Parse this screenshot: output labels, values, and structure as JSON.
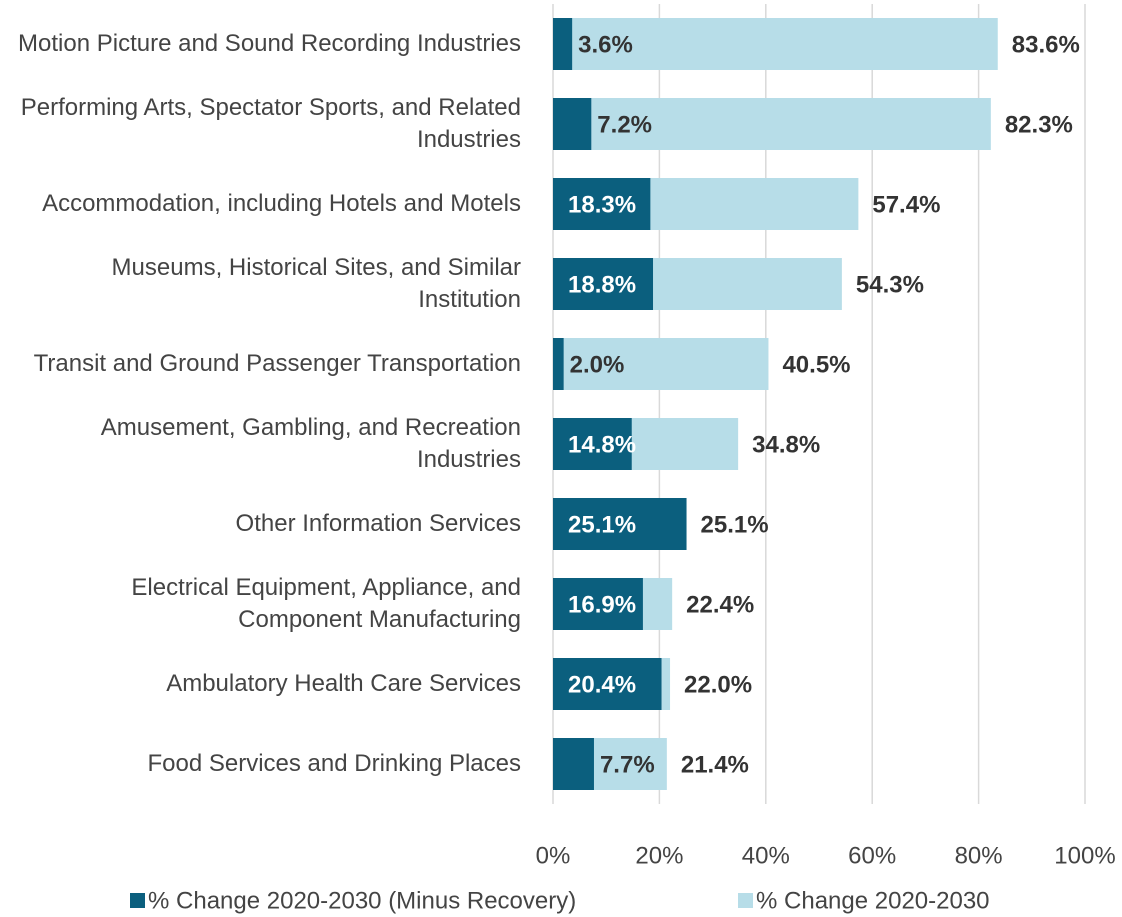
{
  "chart_data": {
    "type": "bar",
    "orientation": "horizontal",
    "categories": [
      "Motion Picture and Sound Recording Industries",
      "Performing Arts, Spectator Sports, and Related Industries",
      "Accommodation, including Hotels and Motels",
      "Museums, Historical Sites, and Similar Institution",
      "Transit and Ground Passenger Transportation",
      "Amusement, Gambling, and Recreation Industries",
      "Other Information Services",
      "Electrical Equipment, Appliance, and Component Manufacturing",
      "Ambulatory Health Care Services",
      "Food Services and Drinking Places"
    ],
    "series": [
      {
        "name": "% Change 2020-2030 (Minus Recovery)",
        "color": "#0b5f7e",
        "values": [
          3.6,
          7.2,
          18.3,
          18.8,
          2.0,
          14.8,
          25.1,
          16.9,
          20.4,
          7.7
        ],
        "value_labels": [
          "3.6%",
          "7.2%",
          "18.3%",
          "18.8%",
          "2.0%",
          "14.8%",
          "25.1%",
          "16.9%",
          "20.4%",
          "7.7%"
        ]
      },
      {
        "name": "% Change 2020-2030",
        "color": "#b7dde8",
        "values": [
          83.6,
          82.3,
          57.4,
          54.3,
          40.5,
          34.8,
          25.1,
          22.4,
          22.0,
          21.4
        ],
        "value_labels": [
          "83.6%",
          "82.3%",
          "57.4%",
          "54.3%",
          "40.5%",
          "34.8%",
          "25.1%",
          "22.4%",
          "22.0%",
          "21.4%"
        ]
      }
    ],
    "xlim": [
      0,
      100
    ],
    "xticks": [
      {
        "value": 0,
        "label": "0%"
      },
      {
        "value": 20,
        "label": "20%"
      },
      {
        "value": 40,
        "label": "40%"
      },
      {
        "value": 60,
        "label": "60%"
      },
      {
        "value": 80,
        "label": "80%"
      },
      {
        "value": 100,
        "label": "100%"
      }
    ],
    "grid": true,
    "legend": "bottom"
  }
}
